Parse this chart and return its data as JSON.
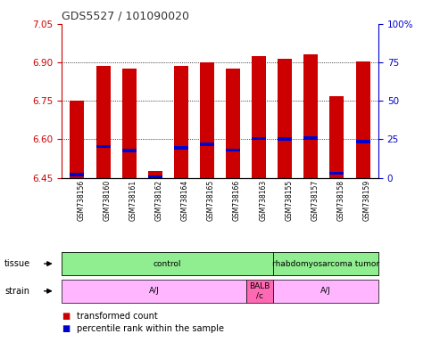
{
  "title": "GDS5527 / 101090020",
  "samples": [
    "GSM738156",
    "GSM738160",
    "GSM738161",
    "GSM738162",
    "GSM738164",
    "GSM738165",
    "GSM738166",
    "GSM738163",
    "GSM738155",
    "GSM738157",
    "GSM738158",
    "GSM738159"
  ],
  "red_values": [
    6.75,
    6.885,
    6.875,
    6.475,
    6.885,
    6.9,
    6.875,
    6.925,
    6.915,
    6.93,
    6.77,
    6.905
  ],
  "blue_values": [
    6.463,
    6.572,
    6.557,
    6.452,
    6.568,
    6.582,
    6.558,
    6.603,
    6.602,
    6.605,
    6.468,
    6.592
  ],
  "base": 6.45,
  "ylim_left": [
    6.45,
    7.05
  ],
  "ylim_right": [
    0,
    100
  ],
  "yticks_left": [
    6.45,
    6.6,
    6.75,
    6.9,
    7.05
  ],
  "yticks_right": [
    0,
    25,
    50,
    75,
    100
  ],
  "grid_values": [
    6.6,
    6.75,
    6.9
  ],
  "bar_color": "#CC0000",
  "blue_color": "#0000CC",
  "left_axis_color": "#CC0000",
  "right_axis_color": "#0000CC",
  "title_color": "#333333",
  "tissue_groups": [
    {
      "text": "control",
      "start": 0,
      "end": 8,
      "color": "#90EE90"
    },
    {
      "text": "rhabdomyosarcoma tumor",
      "start": 8,
      "end": 12,
      "color": "#90EE90"
    }
  ],
  "strain_groups": [
    {
      "text": "A/J",
      "start": 0,
      "end": 7,
      "color": "#FFB6FF"
    },
    {
      "text": "BALB\n/c",
      "start": 7,
      "end": 8,
      "color": "#FF69B4"
    },
    {
      "text": "A/J",
      "start": 8,
      "end": 12,
      "color": "#FFB6FF"
    }
  ],
  "tissue_row_label": "tissue",
  "strain_row_label": "strain",
  "legend_red": "transformed count",
  "legend_blue": "percentile rank within the sample"
}
